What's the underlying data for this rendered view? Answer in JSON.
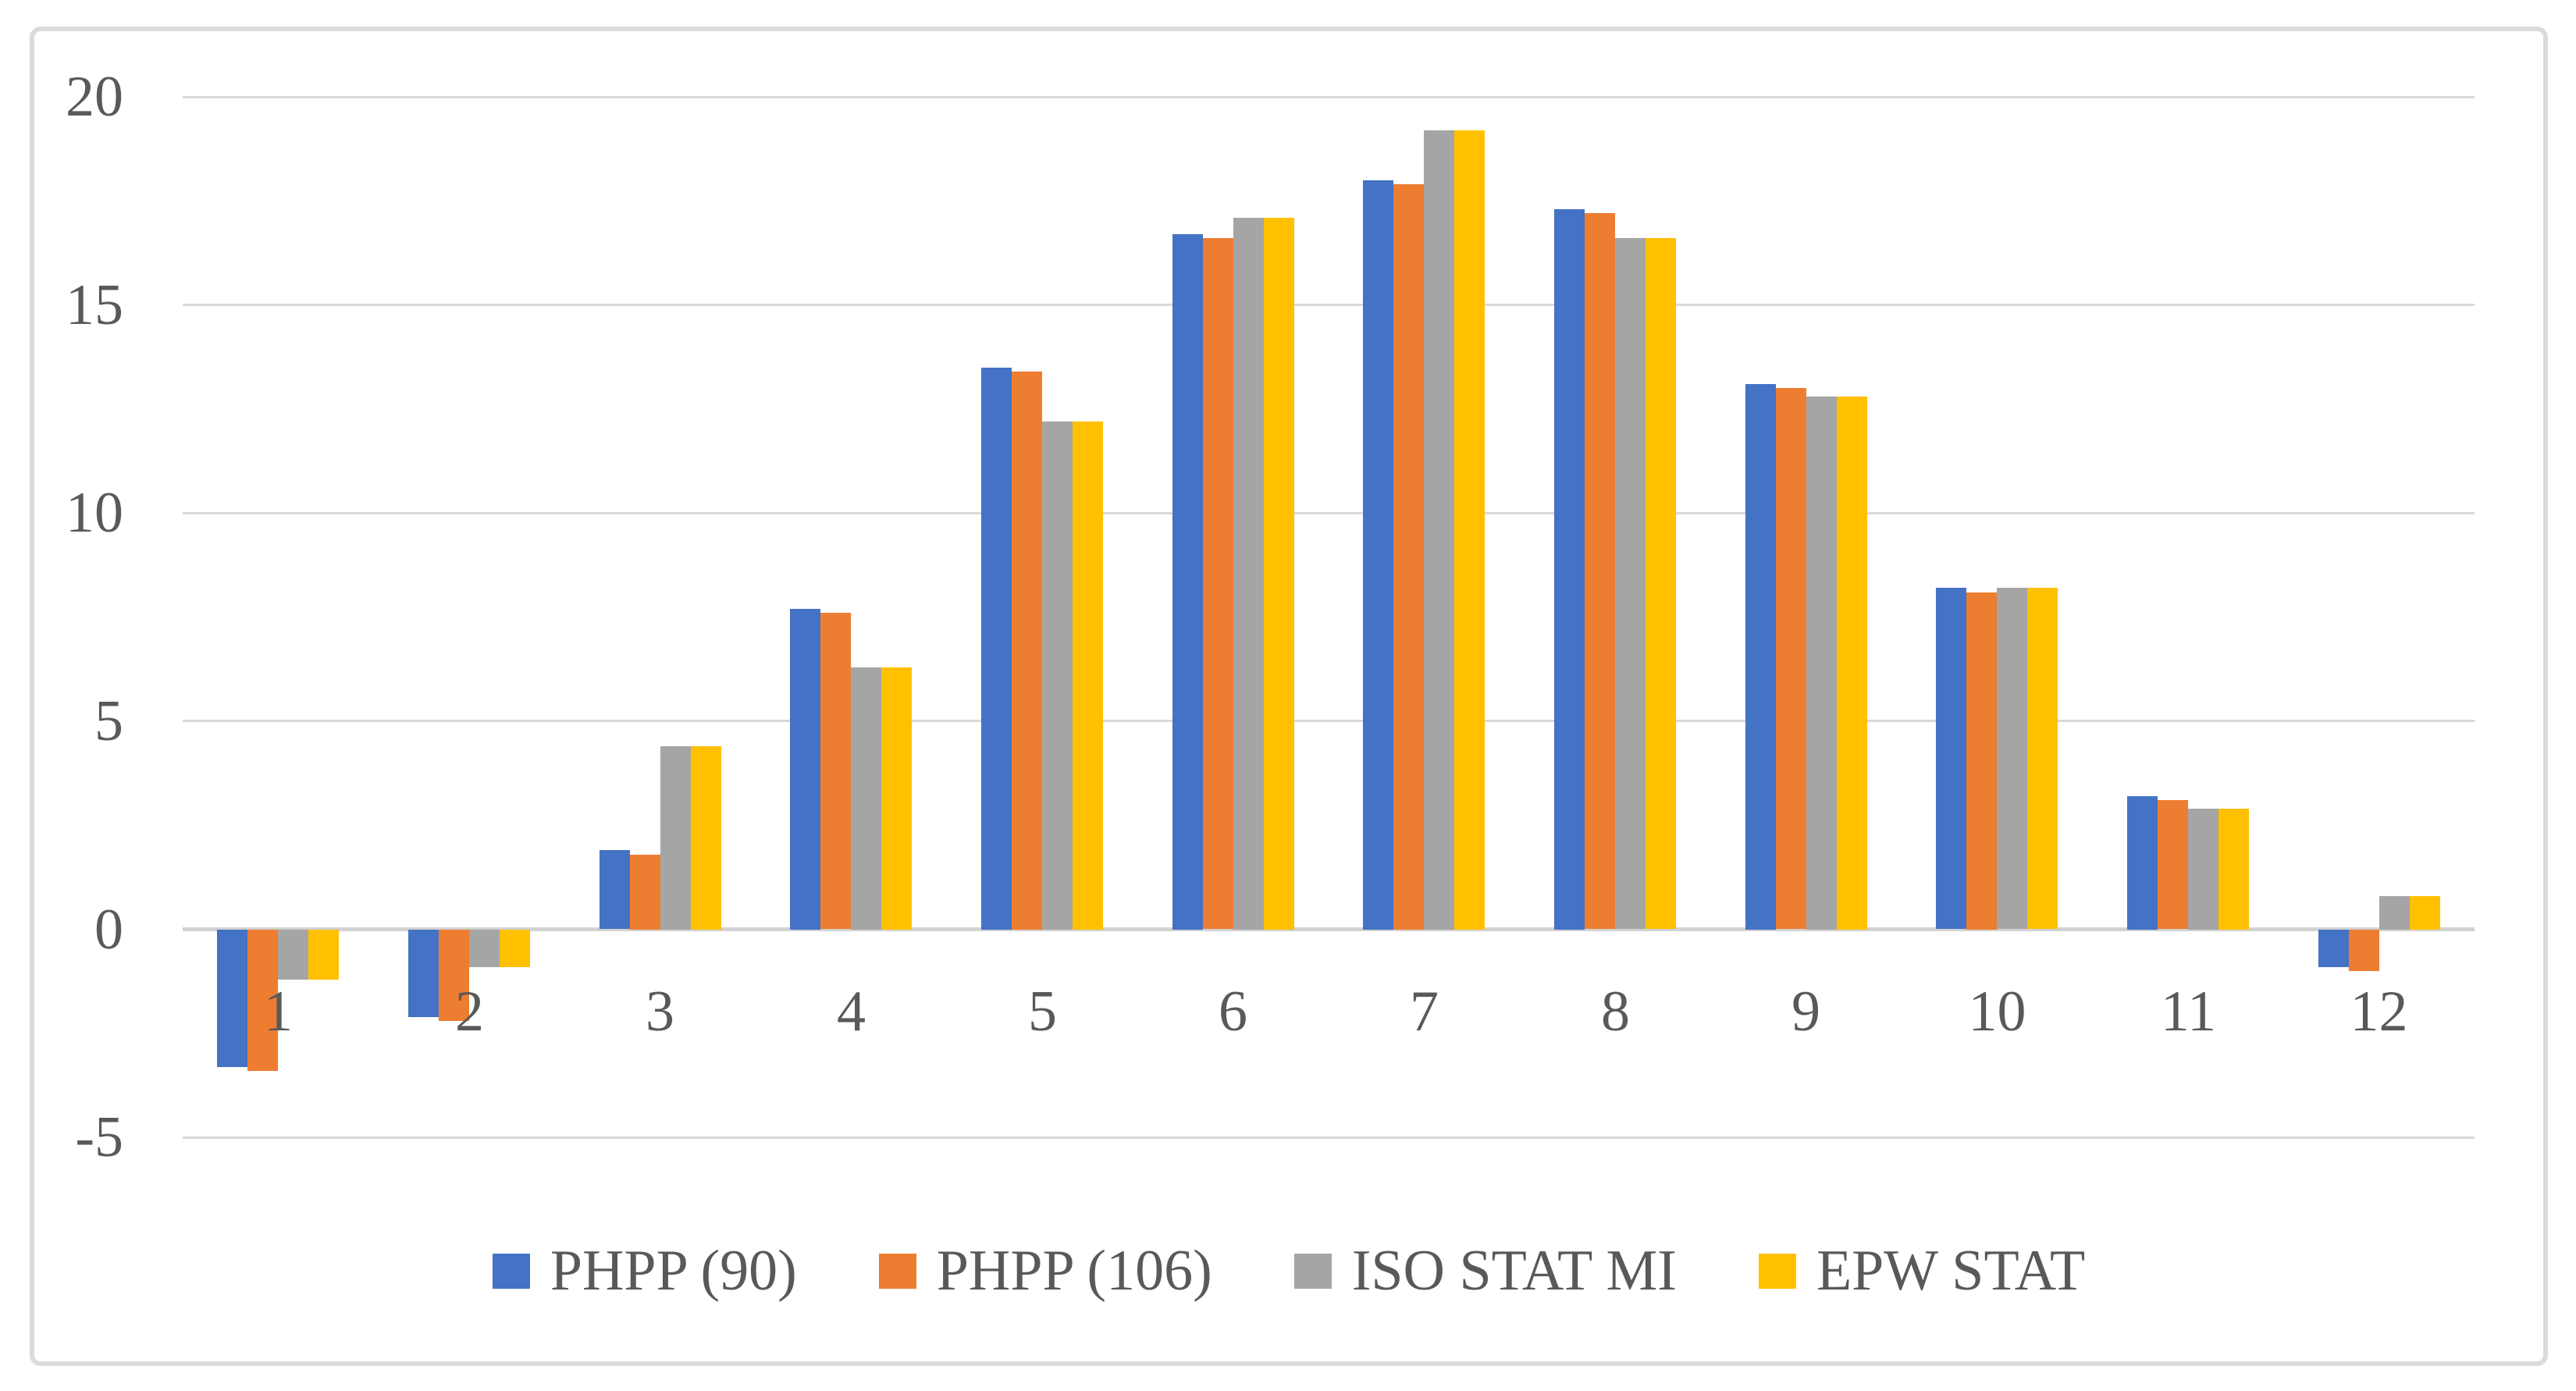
{
  "figure": {
    "background": "#FFFFFF",
    "border_color": "#DBDBDB",
    "axis_text_color": "#595959",
    "gridline_color": "#D9D9D9",
    "zero_axis_color": "#D2D2D2"
  },
  "chart_data": {
    "type": "bar",
    "title": "",
    "xlabel": "",
    "ylabel": "",
    "categories": [
      "1",
      "2",
      "3",
      "4",
      "5",
      "6",
      "7",
      "8",
      "9",
      "10",
      "11",
      "12"
    ],
    "series": [
      {
        "name": "PHPP (90)",
        "color": "#4472C4",
        "values": [
          -3.3,
          -2.1,
          1.9,
          7.7,
          13.5,
          16.7,
          18.0,
          17.3,
          13.1,
          8.2,
          3.2,
          -0.9
        ]
      },
      {
        "name": "PHPP (106)",
        "color": "#ED7D31",
        "values": [
          -3.4,
          -2.2,
          1.8,
          7.6,
          13.4,
          16.6,
          17.9,
          17.2,
          13.0,
          8.1,
          3.1,
          -1.0
        ]
      },
      {
        "name": "ISO STAT MI",
        "color": "#A5A5A5",
        "values": [
          -1.2,
          -0.9,
          4.4,
          6.3,
          12.2,
          17.1,
          19.2,
          16.6,
          12.8,
          8.2,
          2.9,
          0.8
        ]
      },
      {
        "name": "EPW STAT",
        "color": "#FFC000",
        "values": [
          -1.2,
          -0.9,
          4.4,
          6.3,
          12.2,
          17.1,
          19.2,
          16.6,
          12.8,
          8.2,
          2.9,
          0.8
        ]
      }
    ],
    "ylim": [
      -5,
      20
    ],
    "ytick_interval": 5,
    "ytick_labels": [
      "20",
      "15",
      "10",
      "5",
      "0",
      "-5"
    ],
    "grid": true,
    "legend_position": "bottom-center"
  }
}
